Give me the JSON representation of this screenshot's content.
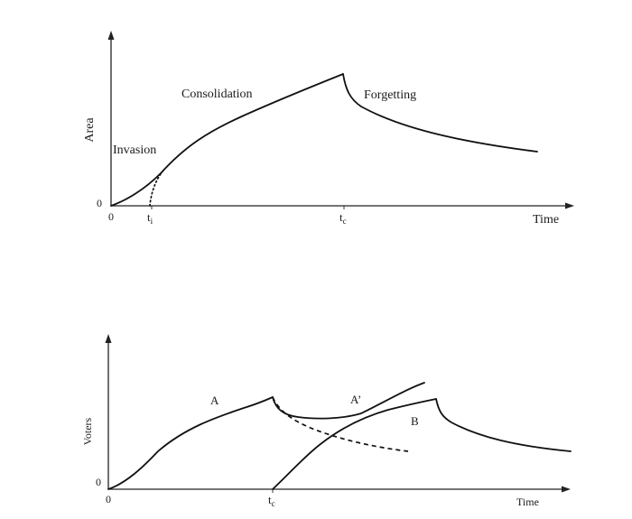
{
  "top_panel": {
    "y_axis_label": "Area",
    "x_axis_label": "Time",
    "origin_label": "0",
    "x_origin_label": "0",
    "tick_ti_main": "t",
    "tick_ti_sub": "i",
    "tick_tc_main": "t",
    "tick_tc_sub": "c",
    "phase_invasion": "Invasion",
    "phase_consolidation": "Consolidation",
    "phase_forgetting": "Forgetting"
  },
  "bottom_panel": {
    "y_axis_label": "Voters",
    "x_axis_label": "Time",
    "origin_label": "0",
    "x_origin_label": "0",
    "tick_tc_main": "t",
    "tick_tc_sub": "c",
    "curve_a_label": "A",
    "curve_a_prime_label": "A’",
    "curve_b_label": "B"
  }
}
